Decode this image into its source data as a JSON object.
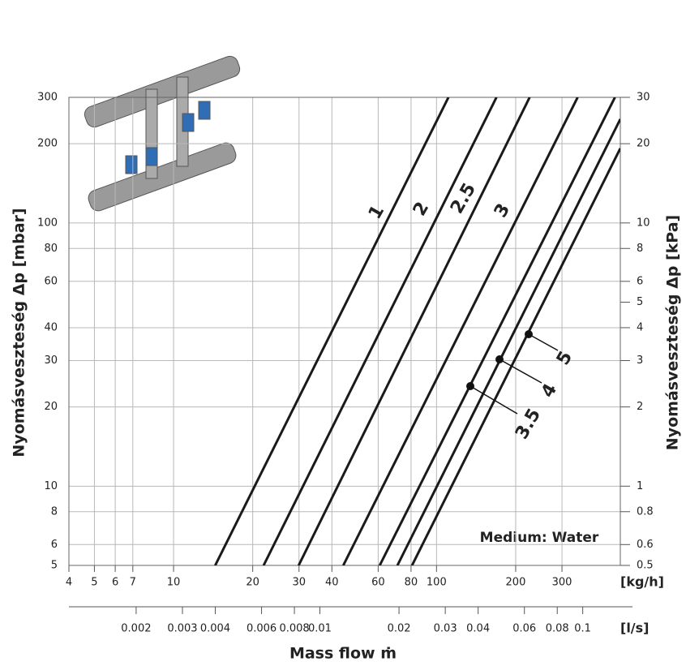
{
  "chart_data": {
    "type": "line",
    "log_x": true,
    "log_y": true,
    "grid": true,
    "x_unit": "[kg/h]",
    "x2_unit": "[l/s]",
    "xlabel": "Mass flow ṁ",
    "ylabel": "Nyomásveszteség Δp [mbar]",
    "y2label": "Nyomásveszteség Δp [kPa]",
    "annotation": "Medium: Water",
    "xlim": [
      4,
      500
    ],
    "xticks": [
      4,
      5,
      6,
      7,
      10,
      20,
      30,
      40,
      60,
      80,
      100,
      200,
      300
    ],
    "x2lim": [
      0.00111,
      0.139
    ],
    "x2ticks": [
      0.002,
      0.003,
      0.004,
      0.006,
      0.008,
      0.01,
      0.02,
      0.03,
      0.04,
      0.06,
      0.08,
      0.1
    ],
    "ylim": [
      5,
      300
    ],
    "yticks": [
      5,
      6,
      8,
      10,
      20,
      30,
      40,
      60,
      80,
      100,
      200,
      300
    ],
    "y2lim": [
      0.5,
      30
    ],
    "y2ticks": [
      0.5,
      0.6,
      0.8,
      1,
      2,
      3,
      4,
      5,
      6,
      8,
      10,
      20,
      30
    ],
    "series": [
      {
        "name": "1",
        "color": "#1a1a1a",
        "x": [
          14.4,
          111
        ],
        "values": [
          5,
          300
        ]
      },
      {
        "name": "2",
        "color": "#1a1a1a",
        "x": [
          22,
          169
        ],
        "values": [
          5,
          300
        ]
      },
      {
        "name": "2.5",
        "color": "#1a1a1a",
        "x": [
          29.9,
          226
        ],
        "values": [
          5,
          300
        ]
      },
      {
        "name": "3",
        "color": "#1a1a1a",
        "x": [
          44.2,
          344
        ],
        "values": [
          5,
          300
        ]
      },
      {
        "name": "3.5",
        "color": "#1a1a1a",
        "x": [
          60.8,
          477
        ],
        "values": [
          5,
          300
        ]
      },
      {
        "name": "4",
        "color": "#1a1a1a",
        "x": [
          71,
          500
        ],
        "values": [
          5,
          248
        ]
      },
      {
        "name": "5",
        "color": "#1a1a1a",
        "x": [
          80.7,
          500
        ],
        "values": [
          5,
          192
        ]
      }
    ]
  }
}
